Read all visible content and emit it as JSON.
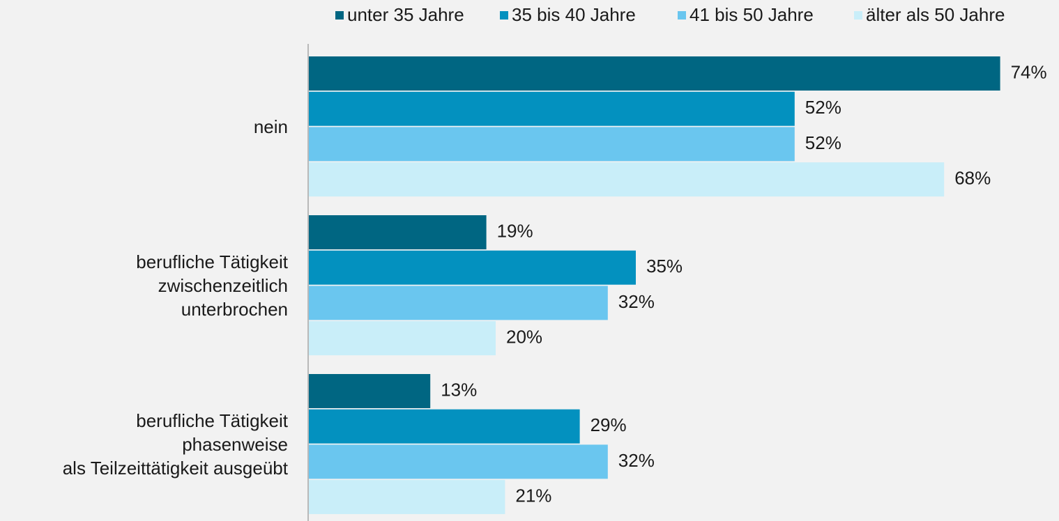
{
  "chart_data": {
    "type": "bar",
    "orientation": "horizontal",
    "categories": [
      "nein",
      "berufliche Tätigkeit\nzwischenzeitlich\nunterbrochen",
      "berufliche Tätigkeit\nphasenweise\nals Teilzeittätigkeit ausgeübt"
    ],
    "series": [
      {
        "name": "unter 35 Jahre",
        "color": "#006682",
        "values": [
          74,
          19,
          13
        ],
        "value_labels": [
          "74%",
          "19%",
          "13%"
        ]
      },
      {
        "name": "35 bis 40 Jahre",
        "color": "#0391bf",
        "values": [
          52,
          35,
          29
        ],
        "value_labels": [
          "52%",
          "35%",
          "29%"
        ]
      },
      {
        "name": "41 bis 50 Jahre",
        "color": "#6ac6ef",
        "values": [
          52,
          32,
          32
        ],
        "value_labels": [
          "52%",
          "32%",
          "32%"
        ]
      },
      {
        "name": "älter als 50 Jahre",
        "color": "#c9eef9",
        "values": [
          68,
          20,
          21
        ],
        "value_labels": [
          "68%",
          "20%",
          "21%"
        ]
      }
    ],
    "legend": "top-right"
  }
}
